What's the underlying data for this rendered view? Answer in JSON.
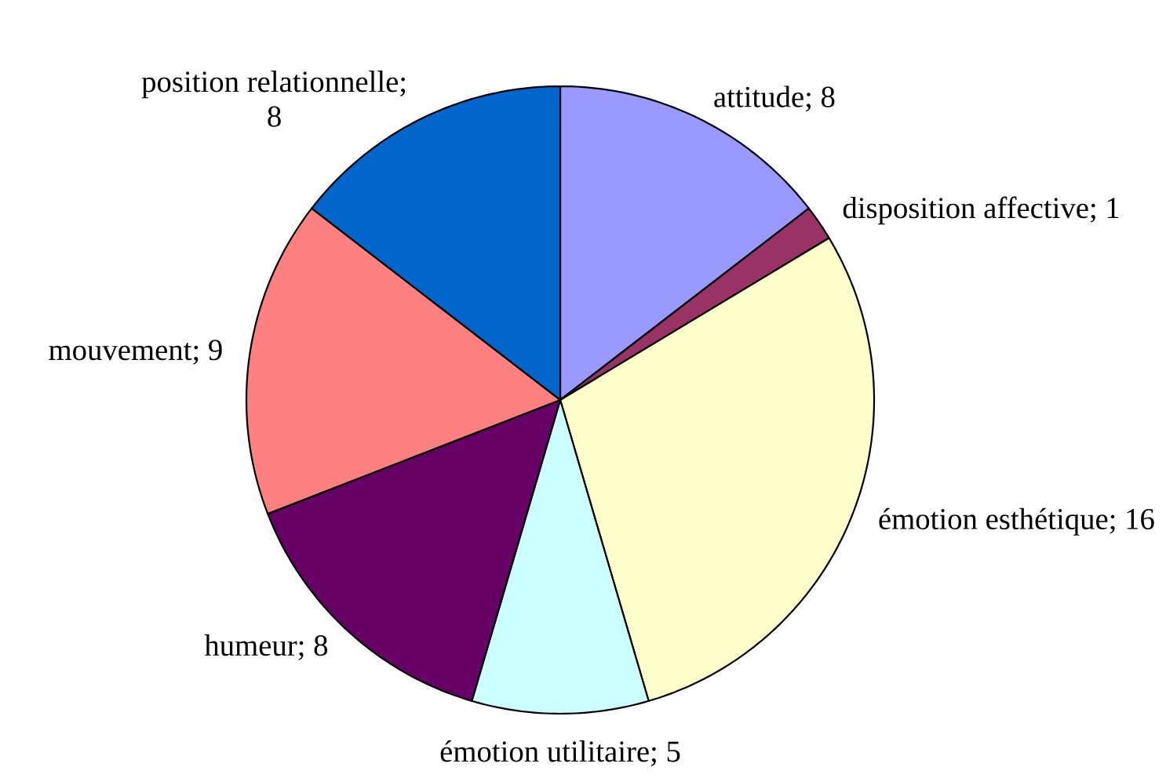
{
  "chart_data": {
    "type": "pie",
    "categories": [
      "attitude",
      "disposition affective",
      "émotion esthétique",
      "émotion utilitaire",
      "humeur",
      "mouvement",
      "position relationnelle"
    ],
    "values": [
      8,
      1,
      16,
      5,
      8,
      9,
      8
    ],
    "colors": [
      "#9999ff",
      "#993366",
      "#ffffcc",
      "#ccffff",
      "#660066",
      "#ff8080",
      "#0066cc"
    ],
    "value_labels": [
      "; 8",
      "; 1",
      "; 16",
      "; 5",
      "; 8",
      "; 9",
      "; 8"
    ]
  }
}
